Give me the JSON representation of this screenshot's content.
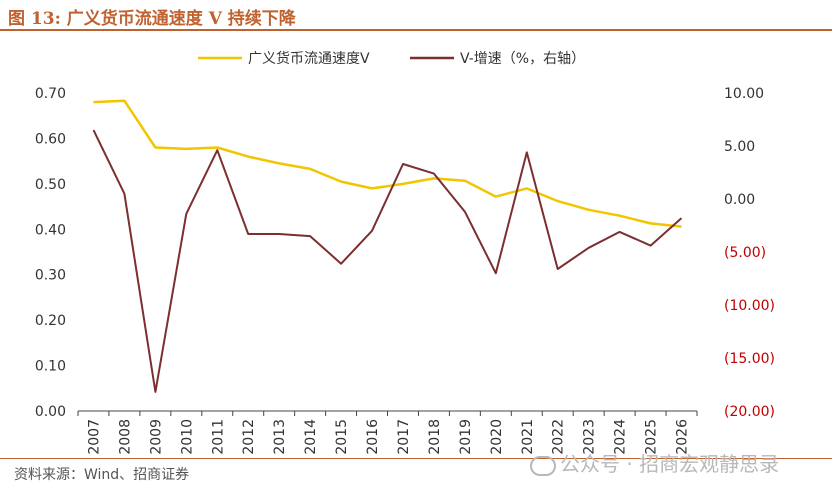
{
  "title": "图 13:  广义货币流通速度 V 持续下降",
  "source": "资料来源：Wind、招商证券",
  "watermark": "公众号 · 招商宏观静思录",
  "colors": {
    "accent": "#c0622f",
    "velocity": "#f2c500",
    "growth": "#7b2f2f",
    "negative": "#c00000"
  },
  "chart_data": {
    "type": "line",
    "categories": [
      "2007",
      "2008",
      "2009",
      "2010",
      "2011",
      "2012",
      "2013",
      "2014",
      "2015",
      "2016",
      "2017",
      "2018",
      "2019",
      "2020",
      "2021",
      "2022",
      "2023",
      "2024",
      "2025",
      "2026"
    ],
    "series": [
      {
        "name": "广义货币流通速度V",
        "axis": "left",
        "values": [
          0.68,
          0.683,
          0.58,
          0.577,
          0.58,
          0.56,
          0.545,
          0.533,
          0.505,
          0.49,
          0.5,
          0.512,
          0.507,
          0.472,
          0.49,
          0.462,
          0.443,
          0.43,
          0.413,
          0.406
        ]
      },
      {
        "name": "V-增速（%，右轴）",
        "axis": "right",
        "values": [
          6.5,
          0.5,
          -18.2,
          -1.4,
          4.6,
          -3.3,
          -3.3,
          -3.5,
          -6.1,
          -3.0,
          3.3,
          2.4,
          -1.2,
          -7.0,
          4.4,
          -6.6,
          -4.6,
          -3.1,
          -4.4,
          -1.8
        ]
      }
    ],
    "y_left": {
      "min": 0,
      "max": 0.7,
      "ticks": [
        "0.00",
        "0.10",
        "0.20",
        "0.30",
        "0.40",
        "0.50",
        "0.60",
        "0.70"
      ]
    },
    "y_right": {
      "min": -20,
      "max": 10,
      "ticks": [
        "(20.00)",
        "(15.00)",
        "(10.00)",
        "(5.00)",
        "0.00",
        "5.00",
        "10.00"
      ]
    },
    "legend": {
      "position": "top-center",
      "items": [
        "广义货币流通速度V",
        "V-增速（%，右轴）"
      ]
    },
    "grid": false
  }
}
